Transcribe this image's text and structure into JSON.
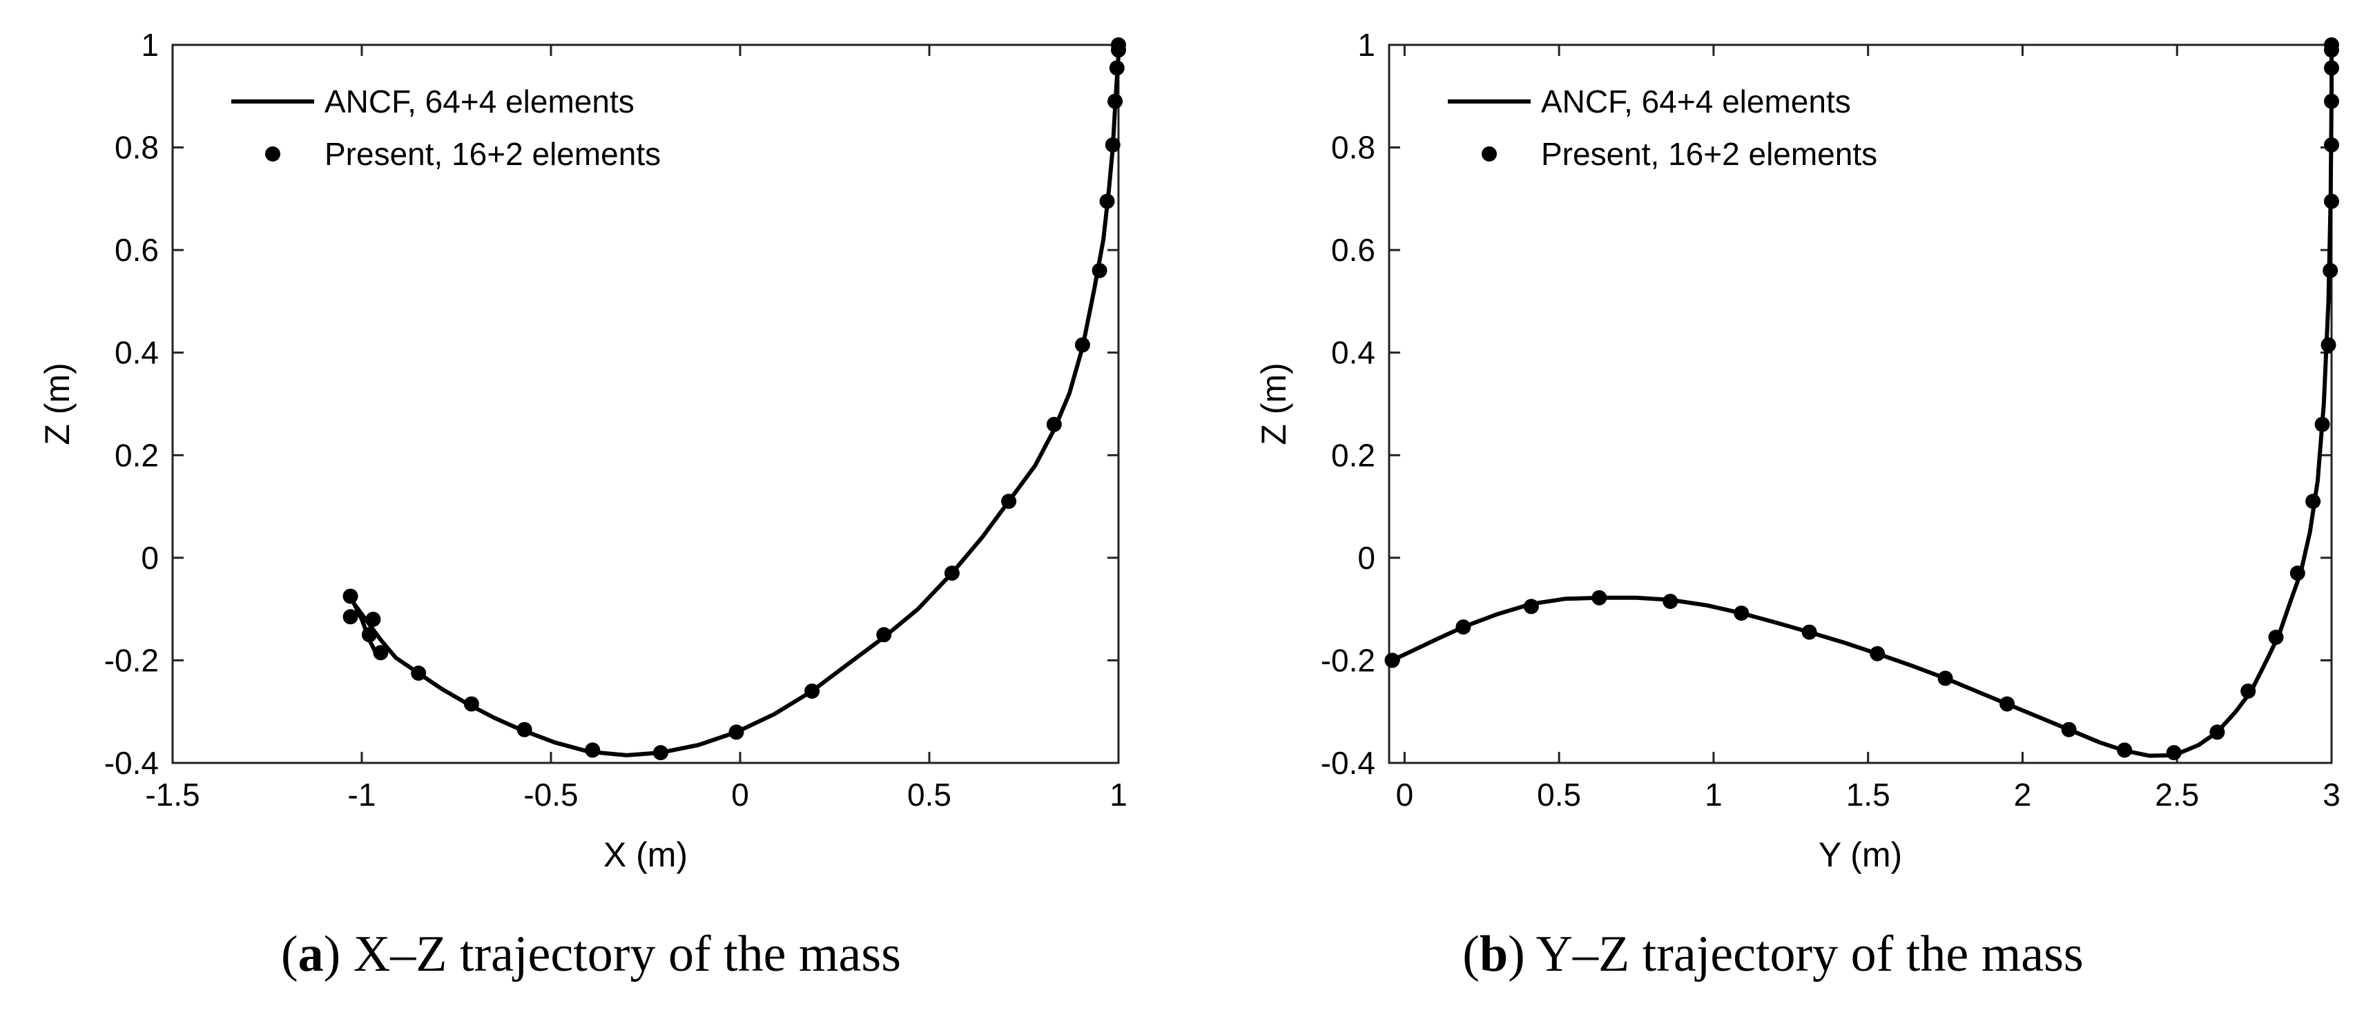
{
  "chart_data": [
    {
      "type": "line",
      "id": "a",
      "caption_letter": "a",
      "caption_text": " X–Z trajectory of the mass",
      "xlabel": "X (m)",
      "ylabel": "Z (m)",
      "xlim": [
        -1.5,
        1
      ],
      "ylim": [
        -0.4,
        1
      ],
      "xticks": [
        -1.5,
        -1,
        -0.5,
        0,
        0.5,
        1
      ],
      "xtick_labels": [
        "-1.5",
        "-1",
        "-0.5",
        "0",
        "0.5",
        "1"
      ],
      "yticks": [
        -0.4,
        -0.2,
        0,
        0.2,
        0.4,
        0.6,
        0.8,
        1
      ],
      "ytick_labels": [
        "-0.4",
        "-0.2",
        "0",
        "0.2",
        "0.4",
        "0.6",
        "0.8",
        "1"
      ],
      "legend": [
        "ANCF, 64+4 elements",
        "Present, 16+2 elements"
      ],
      "series": [
        {
          "name": "ANCF, 64+4 elements",
          "style": "line",
          "x": [
            1.0,
            1.0,
            0.997,
            0.992,
            0.985,
            0.975,
            0.96,
            0.935,
            0.905,
            0.87,
            0.83,
            0.78,
            0.71,
            0.64,
            0.56,
            0.47,
            0.38,
            0.28,
            0.19,
            0.09,
            -0.01,
            -0.11,
            -0.21,
            -0.3,
            -0.4,
            -0.49,
            -0.58,
            -0.65,
            -0.72,
            -0.79,
            -0.85,
            -0.91,
            -0.95,
            -0.98,
            -1.0,
            -1.02,
            -1.03,
            -1.02,
            -1.0,
            -0.99,
            -0.98,
            -0.96
          ],
          "y": [
            1.0,
            0.98,
            0.95,
            0.89,
            0.8,
            0.72,
            0.62,
            0.52,
            0.41,
            0.32,
            0.25,
            0.18,
            0.11,
            0.04,
            -0.03,
            -0.1,
            -0.155,
            -0.21,
            -0.26,
            -0.305,
            -0.34,
            -0.365,
            -0.38,
            -0.385,
            -0.378,
            -0.36,
            -0.335,
            -0.312,
            -0.285,
            -0.255,
            -0.225,
            -0.195,
            -0.16,
            -0.13,
            -0.11,
            -0.09,
            -0.076,
            -0.09,
            -0.12,
            -0.14,
            -0.16,
            -0.19
          ]
        },
        {
          "name": "Present, 16+2 elements",
          "style": "markers",
          "x": [
            1.0,
            1.0,
            0.996,
            0.991,
            0.985,
            0.97,
            0.95,
            0.905,
            0.83,
            0.71,
            0.56,
            0.38,
            0.19,
            -0.01,
            -0.21,
            -0.39,
            -0.57,
            -0.71,
            -0.85,
            -0.95,
            -0.98,
            -0.97,
            -1.03,
            -1.03
          ],
          "y": [
            1.0,
            0.99,
            0.955,
            0.89,
            0.805,
            0.695,
            0.56,
            0.415,
            0.26,
            0.11,
            -0.03,
            -0.15,
            -0.26,
            -0.34,
            -0.38,
            -0.375,
            -0.335,
            -0.285,
            -0.225,
            -0.185,
            -0.15,
            -0.12,
            -0.115,
            -0.075
          ]
        }
      ]
    },
    {
      "type": "line",
      "id": "b",
      "caption_letter": "b",
      "caption_text": " Y–Z trajectory of the mass",
      "xlabel": "Y (m)",
      "ylabel": "Z (m)",
      "xlim": [
        -0.05,
        3
      ],
      "ylim": [
        -0.4,
        1
      ],
      "xticks": [
        0,
        0.5,
        1,
        1.5,
        2,
        2.5,
        3
      ],
      "xtick_labels": [
        "0",
        "0.5",
        "1",
        "1.5",
        "2",
        "2.5",
        "3"
      ],
      "yticks": [
        -0.4,
        -0.2,
        0,
        0.2,
        0.4,
        0.6,
        0.8,
        1
      ],
      "ytick_labels": [
        "-0.4",
        "-0.2",
        "0",
        "0.2",
        "0.4",
        "0.6",
        "0.8",
        "1"
      ],
      "legend": [
        "ANCF, 64+4 elements",
        "Present, 16+2 elements"
      ],
      "series": [
        {
          "name": "ANCF, 64+4 elements",
          "style": "line",
          "x": [
            -0.04,
            0.1,
            0.19,
            0.3,
            0.41,
            0.52,
            0.63,
            0.75,
            0.86,
            0.98,
            1.09,
            1.2,
            1.31,
            1.42,
            1.53,
            1.64,
            1.75,
            1.85,
            1.95,
            2.05,
            2.15,
            2.25,
            2.33,
            2.41,
            2.49,
            2.57,
            2.63,
            2.69,
            2.74,
            2.79,
            2.83,
            2.87,
            2.9,
            2.93,
            2.955,
            2.975,
            2.99,
            2.997,
            3.0,
            3.0
          ],
          "y": [
            -0.2,
            -0.16,
            -0.135,
            -0.11,
            -0.09,
            -0.08,
            -0.078,
            -0.078,
            -0.082,
            -0.093,
            -0.108,
            -0.126,
            -0.145,
            -0.165,
            -0.187,
            -0.21,
            -0.235,
            -0.26,
            -0.285,
            -0.31,
            -0.335,
            -0.36,
            -0.376,
            -0.386,
            -0.385,
            -0.365,
            -0.34,
            -0.3,
            -0.26,
            -0.2,
            -0.15,
            -0.08,
            -0.03,
            0.05,
            0.15,
            0.3,
            0.5,
            0.7,
            0.9,
            1.0
          ]
        },
        {
          "name": "Present, 16+2 elements",
          "style": "markers",
          "x": [
            -0.04,
            0.19,
            0.41,
            0.63,
            0.86,
            1.09,
            1.31,
            1.53,
            1.75,
            1.95,
            2.15,
            2.33,
            2.49,
            2.63,
            2.73,
            2.82,
            2.89,
            2.94,
            2.97,
            2.99,
            2.996,
            3.0,
            3.0,
            3.0,
            3.0,
            3.0,
            3.0
          ],
          "y": [
            -0.2,
            -0.135,
            -0.095,
            -0.078,
            -0.085,
            -0.108,
            -0.145,
            -0.187,
            -0.235,
            -0.285,
            -0.335,
            -0.375,
            -0.38,
            -0.34,
            -0.26,
            -0.155,
            -0.03,
            0.11,
            0.26,
            0.415,
            0.56,
            0.695,
            0.805,
            0.89,
            0.955,
            0.99,
            1.0
          ]
        }
      ]
    }
  ]
}
